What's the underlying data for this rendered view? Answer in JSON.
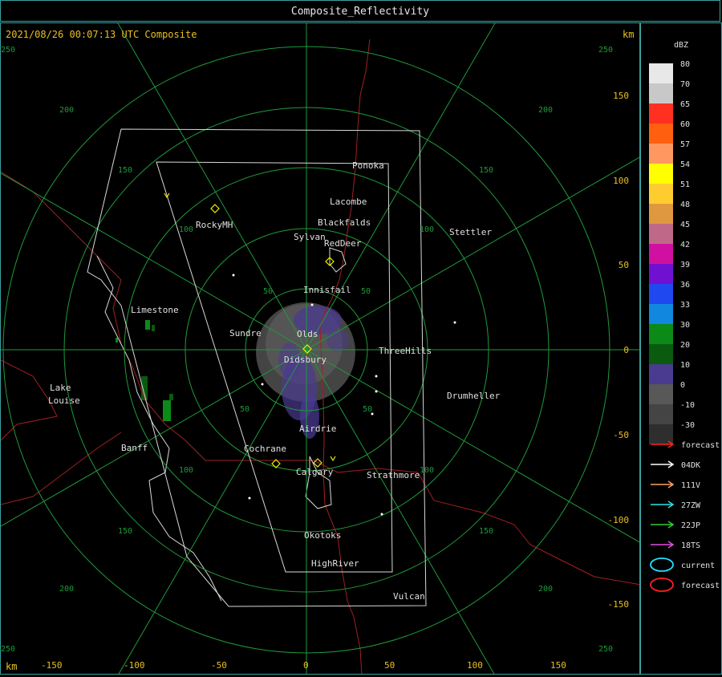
{
  "window_title": "Composite_Reflectivity",
  "header": {
    "timestamp": "2021/08/26 00:07:13 UTC Composite",
    "unit_top_right": "km",
    "unit_bottom_left": "km"
  },
  "colors": {
    "frame": "#3aa0a0",
    "range_ring": "#1f9a3a",
    "border": "#a02020",
    "box": "#d8d8d8",
    "text": "#e0e0e0",
    "axis_label": "#e8c020"
  },
  "range_rings_km": [
    50,
    100,
    150,
    200,
    250
  ],
  "x_axis_ticks": [
    "-150",
    "-100",
    "-50",
    "0",
    "50",
    "100",
    "150"
  ],
  "y_axis_ticks": [
    "150",
    "100",
    "50",
    "0",
    "-50",
    "-100",
    "-150"
  ],
  "ring_labels": [
    "50",
    "100",
    "150",
    "200",
    "250"
  ],
  "places": [
    {
      "name": "Ponoka"
    },
    {
      "name": "Lacombe"
    },
    {
      "name": "Blackfalds"
    },
    {
      "name": "Sylvan"
    },
    {
      "name": "RedDeer"
    },
    {
      "name": "RockyMH"
    },
    {
      "name": "Stettler"
    },
    {
      "name": "Innisfail"
    },
    {
      "name": "Limestone"
    },
    {
      "name": "Sundre"
    },
    {
      "name": "Olds"
    },
    {
      "name": "Didsbury"
    },
    {
      "name": "ThreeHills"
    },
    {
      "name": "Lake"
    },
    {
      "name": "Louise"
    },
    {
      "name": "Drumheller"
    },
    {
      "name": "Airdrie"
    },
    {
      "name": "Banff"
    },
    {
      "name": "Cochrane"
    },
    {
      "name": "Calgary"
    },
    {
      "name": "Strathmore"
    },
    {
      "name": "Okotoks"
    },
    {
      "name": "HighRiver"
    },
    {
      "name": "Vulcan"
    }
  ],
  "legend": {
    "title": "dBZ",
    "scale": [
      {
        "label": "80",
        "color": "#e8e8e8"
      },
      {
        "label": "70",
        "color": "#c8c8c8"
      },
      {
        "label": "65",
        "color": "#ff3020"
      },
      {
        "label": "60",
        "color": "#ff6010"
      },
      {
        "label": "57",
        "color": "#ff9860"
      },
      {
        "label": "54",
        "color": "#ffff00"
      },
      {
        "label": "51",
        "color": "#ffcc30"
      },
      {
        "label": "48",
        "color": "#e09840"
      },
      {
        "label": "45",
        "color": "#c06888"
      },
      {
        "label": "42",
        "color": "#d010a0"
      },
      {
        "label": "39",
        "color": "#7010d0"
      },
      {
        "label": "36",
        "color": "#2048f0"
      },
      {
        "label": "33",
        "color": "#1088e0"
      },
      {
        "label": "30",
        "color": "#0c8a18"
      },
      {
        "label": "20",
        "color": "#0a5a10"
      },
      {
        "label": "10",
        "color": "#4a3a90"
      },
      {
        "label": "0",
        "color": "#585858"
      },
      {
        "label": "-10",
        "color": "#444444"
      },
      {
        "label": "-30",
        "color": "#2e2e2e"
      }
    ],
    "tracks": [
      {
        "label": "forecast",
        "color": "#ff2020",
        "kind": "arrow"
      },
      {
        "label": "04DK",
        "color": "#ffffff",
        "kind": "arrow"
      },
      {
        "label": "111V",
        "color": "#ffa060",
        "kind": "arrow"
      },
      {
        "label": "27ZW",
        "color": "#30e0e0",
        "kind": "arrow"
      },
      {
        "label": "22JP",
        "color": "#30d030",
        "kind": "arrow"
      },
      {
        "label": "18TS",
        "color": "#e050e0",
        "kind": "arrow"
      },
      {
        "label": "current",
        "color": "#20e0ff",
        "kind": "ellipse"
      },
      {
        "label": "forecast",
        "color": "#ff2020",
        "kind": "ellipse"
      }
    ]
  }
}
